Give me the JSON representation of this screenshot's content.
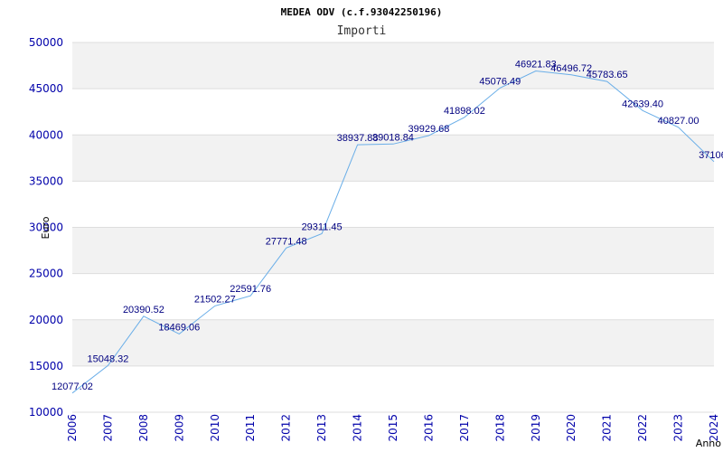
{
  "chart_data": {
    "type": "line",
    "title": "MEDEA ODV (c.f.93042250196)",
    "subtitle": "Importi",
    "xlabel": "Anno",
    "ylabel": "Euro",
    "x": [
      "2006",
      "2007",
      "2008",
      "2009",
      "2010",
      "2011",
      "2012",
      "2013",
      "2014",
      "2015",
      "2016",
      "2017",
      "2018",
      "2019",
      "2020",
      "2021",
      "2022",
      "2023",
      "2024"
    ],
    "values": [
      12077.02,
      15048.32,
      20390.52,
      18469.06,
      21502.27,
      22591.76,
      27771.48,
      29311.45,
      38937.88,
      39018.84,
      39929.68,
      41898.02,
      45076.49,
      46921.83,
      46496.72,
      45783.65,
      42639.4,
      40827.0,
      37106.0
    ],
    "data_labels": [
      "12077.02",
      "15048.32",
      "20390.52",
      "18469.06",
      "21502.27",
      "22591.76",
      "27771.48",
      "29311.45",
      "38937.88",
      "39018.84",
      "39929.68",
      "41898.02",
      "45076.49",
      "46921.83",
      "46496.72",
      "45783.65",
      "42639.40",
      "40827.00",
      "37106."
    ],
    "y_ticks": [
      10000,
      15000,
      20000,
      25000,
      30000,
      35000,
      40000,
      45000,
      50000
    ],
    "ylim": [
      10000,
      50000
    ],
    "grid": true,
    "colors": {
      "line": "#6aaee8",
      "band": "#f2f2f2",
      "grid": "#dddddd",
      "tick_text": "#0000aa",
      "label_text": "#000080"
    }
  }
}
